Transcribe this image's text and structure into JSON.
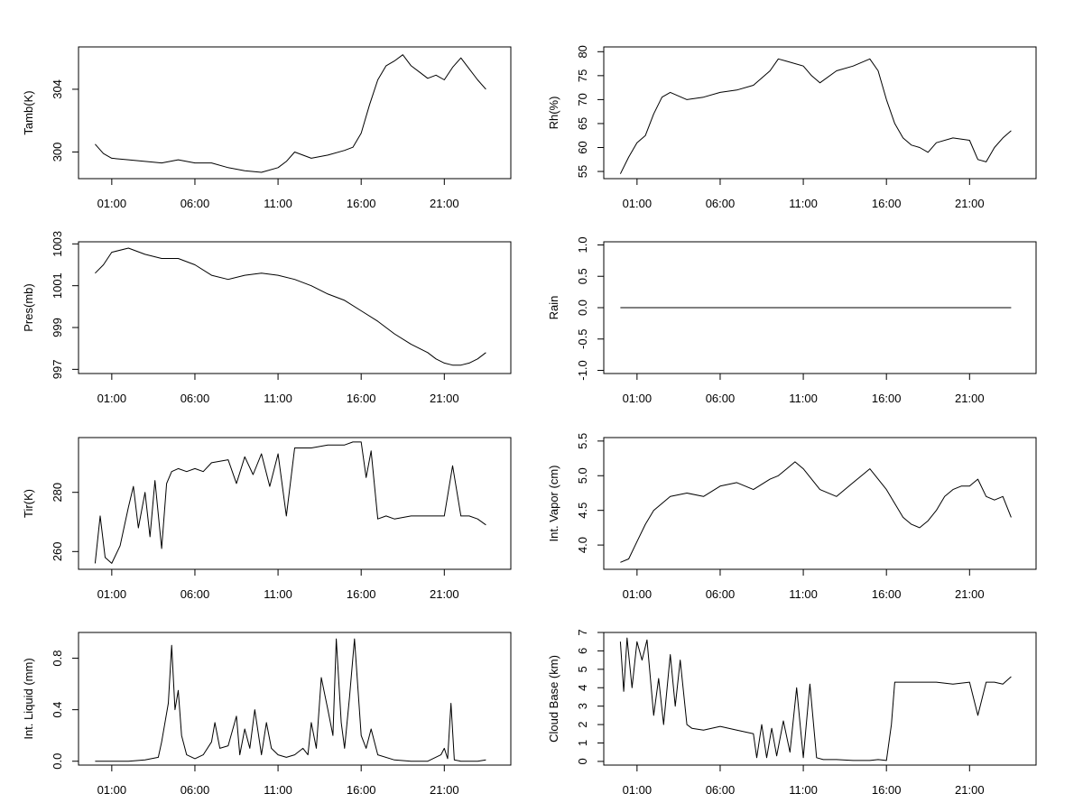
{
  "chart_data": [
    {
      "type": "line",
      "ylabel": "Tamb(K)",
      "x_tick_labels": [
        "01:00",
        "06:00",
        "11:00",
        "16:00",
        "21:00"
      ],
      "x_tick_hours": [
        1,
        6,
        11,
        16,
        21
      ],
      "xlim": [
        -1.0,
        25.0
      ],
      "ylim": [
        298.3,
        306.7
      ],
      "y_ticks": [
        300,
        304
      ],
      "y_tick_labels": [
        "300",
        "304"
      ],
      "x": [
        0,
        0.5,
        1,
        2,
        3,
        4,
        5,
        6,
        7,
        8,
        9,
        10,
        11,
        11.5,
        12,
        13,
        14,
        15,
        15.5,
        16,
        16.5,
        17,
        17.5,
        18,
        18.5,
        19,
        19.5,
        20,
        20.5,
        21,
        21.5,
        22,
        22.5,
        23,
        23.5
      ],
      "y": [
        300.5,
        299.9,
        299.6,
        299.5,
        299.4,
        299.3,
        299.5,
        299.3,
        299.3,
        299.0,
        298.8,
        298.7,
        299.0,
        299.4,
        300.0,
        299.6,
        299.8,
        300.1,
        300.3,
        301.2,
        303.0,
        304.6,
        305.5,
        305.8,
        306.2,
        305.5,
        305.1,
        304.7,
        304.9,
        304.6,
        305.4,
        306.0,
        305.3,
        304.6,
        304.0
      ]
    },
    {
      "type": "line",
      "ylabel": "Rh(%)",
      "x_tick_labels": [
        "01:00",
        "06:00",
        "11:00",
        "16:00",
        "21:00"
      ],
      "x_tick_hours": [
        1,
        6,
        11,
        16,
        21
      ],
      "xlim": [
        -1.0,
        25.0
      ],
      "ylim": [
        53.5,
        81.0
      ],
      "y_ticks": [
        55,
        60,
        65,
        70,
        75,
        80
      ],
      "y_tick_labels": [
        "55",
        "60",
        "65",
        "70",
        "75",
        "80"
      ],
      "x": [
        0,
        0.5,
        1,
        1.5,
        2,
        2.5,
        3,
        4,
        5,
        6,
        7,
        8,
        9,
        9.5,
        10,
        11,
        11.5,
        12,
        13,
        14,
        15,
        15.5,
        16,
        16.5,
        17,
        17.5,
        18,
        18.5,
        19,
        20,
        21,
        21.5,
        22,
        22.5,
        23,
        23.5
      ],
      "y": [
        54.5,
        58.0,
        61.0,
        62.5,
        67.0,
        70.5,
        71.5,
        70.0,
        70.5,
        71.5,
        72.0,
        73.0,
        76.0,
        78.5,
        78.0,
        77.0,
        75.0,
        73.5,
        76.0,
        77.0,
        78.5,
        76.0,
        70.0,
        65.0,
        62.0,
        60.5,
        60.0,
        59.0,
        61.0,
        62.0,
        61.5,
        57.5,
        57.0,
        60.0,
        62.0,
        63.5
      ]
    },
    {
      "type": "line",
      "ylabel": "Pres(mb)",
      "x_tick_labels": [
        "01:00",
        "06:00",
        "11:00",
        "16:00",
        "21:00"
      ],
      "x_tick_hours": [
        1,
        6,
        11,
        16,
        21
      ],
      "xlim": [
        -1.0,
        25.0
      ],
      "ylim": [
        996.8,
        1003.1
      ],
      "y_ticks": [
        997,
        999,
        1001,
        1003
      ],
      "y_tick_labels": [
        "997",
        "999",
        "1001",
        "1003"
      ],
      "x": [
        0,
        0.5,
        1,
        2,
        3,
        4,
        5,
        6,
        7,
        8,
        9,
        10,
        11,
        12,
        13,
        14,
        15,
        16,
        17,
        18,
        19,
        20,
        20.5,
        21,
        21.5,
        22,
        22.5,
        23,
        23.5
      ],
      "y": [
        1001.6,
        1002.0,
        1002.6,
        1002.8,
        1002.5,
        1002.3,
        1002.3,
        1002.0,
        1001.5,
        1001.3,
        1001.5,
        1001.6,
        1001.5,
        1001.3,
        1001.0,
        1000.6,
        1000.3,
        999.8,
        999.3,
        998.7,
        998.2,
        997.8,
        997.5,
        997.3,
        997.2,
        997.2,
        997.3,
        997.5,
        997.8
      ]
    },
    {
      "type": "line",
      "ylabel": "Rain",
      "x_tick_labels": [
        "01:00",
        "06:00",
        "11:00",
        "16:00",
        "21:00"
      ],
      "x_tick_hours": [
        1,
        6,
        11,
        16,
        21
      ],
      "xlim": [
        -1.0,
        25.0
      ],
      "ylim": [
        -1.05,
        1.05
      ],
      "y_ticks": [
        -1.0,
        -0.5,
        0.0,
        0.5,
        1.0
      ],
      "y_tick_labels": [
        "-1.0",
        "-0.5",
        "0.0",
        "0.5",
        "1.0"
      ],
      "x": [
        0,
        23.5
      ],
      "y": [
        0.0,
        0.0
      ]
    },
    {
      "type": "line",
      "ylabel": "Tir(K)",
      "x_tick_labels": [
        "01:00",
        "06:00",
        "11:00",
        "16:00",
        "21:00"
      ],
      "x_tick_hours": [
        1,
        6,
        11,
        16,
        21
      ],
      "xlim": [
        -1.0,
        25.0
      ],
      "ylim": [
        254.0,
        298.5
      ],
      "y_ticks": [
        260,
        280
      ],
      "y_tick_labels": [
        "260",
        "280"
      ],
      "x": [
        0,
        0.3,
        0.6,
        1,
        1.5,
        2,
        2.3,
        2.6,
        3,
        3.3,
        3.6,
        4,
        4.3,
        4.6,
        5,
        5.5,
        6,
        6.5,
        7,
        8,
        8.5,
        9,
        9.5,
        10,
        10.5,
        11,
        11.5,
        12,
        13,
        14,
        15,
        15.5,
        16,
        16.3,
        16.6,
        17,
        17.5,
        18,
        19,
        20,
        21,
        21.5,
        22,
        22.5,
        23,
        23.5
      ],
      "y": [
        256,
        272,
        258,
        256,
        262,
        275,
        282,
        268,
        280,
        265,
        284,
        261,
        283,
        287,
        288,
        287,
        288,
        287,
        290,
        291,
        283,
        292,
        286,
        293,
        282,
        293,
        272,
        295,
        295,
        296,
        296,
        297,
        297,
        285,
        294,
        271,
        272,
        271,
        272,
        272,
        272,
        289,
        272,
        272,
        271,
        269
      ]
    },
    {
      "type": "line",
      "ylabel": "Int. Vapor (cm)",
      "x_tick_labels": [
        "01:00",
        "06:00",
        "11:00",
        "16:00",
        "21:00"
      ],
      "x_tick_hours": [
        1,
        6,
        11,
        16,
        21
      ],
      "xlim": [
        -1.0,
        25.0
      ],
      "ylim": [
        3.65,
        5.55
      ],
      "y_ticks": [
        4.0,
        4.5,
        5.0,
        5.5
      ],
      "y_tick_labels": [
        "4.0",
        "4.5",
        "5.0",
        "5.5"
      ],
      "x": [
        0,
        0.5,
        1,
        1.5,
        2,
        2.5,
        3,
        4,
        5,
        6,
        7,
        8,
        9,
        9.5,
        10,
        10.5,
        11,
        12,
        13,
        14,
        14.5,
        15,
        16,
        16.5,
        17,
        17.5,
        18,
        18.5,
        19,
        19.5,
        20,
        20.5,
        21,
        21.5,
        22,
        22.5,
        23,
        23.5
      ],
      "y": [
        3.75,
        3.8,
        4.05,
        4.3,
        4.5,
        4.6,
        4.7,
        4.75,
        4.7,
        4.85,
        4.9,
        4.8,
        4.95,
        5.0,
        5.1,
        5.2,
        5.1,
        4.8,
        4.7,
        4.9,
        5.0,
        5.1,
        4.8,
        4.6,
        4.4,
        4.3,
        4.25,
        4.35,
        4.5,
        4.7,
        4.8,
        4.85,
        4.85,
        4.95,
        4.7,
        4.65,
        4.7,
        4.4
      ]
    },
    {
      "type": "line",
      "ylabel": "Int. Liquid (mm)",
      "x_tick_labels": [
        "01:00",
        "06:00",
        "11:00",
        "16:00",
        "21:00"
      ],
      "x_tick_hours": [
        1,
        6,
        11,
        16,
        21
      ],
      "xlim": [
        -1.0,
        25.0
      ],
      "ylim": [
        -0.03,
        1.0
      ],
      "y_ticks": [
        0.0,
        0.4,
        0.8
      ],
      "y_tick_labels": [
        "0.0",
        "0.4",
        "0.8"
      ],
      "x": [
        0,
        1,
        2,
        3,
        3.8,
        4,
        4.2,
        4.4,
        4.6,
        4.8,
        5.0,
        5.2,
        5.5,
        6.0,
        6.5,
        7.0,
        7.2,
        7.5,
        8.0,
        8.5,
        8.7,
        9.0,
        9.3,
        9.6,
        10.0,
        10.3,
        10.6,
        11.0,
        11.5,
        12.0,
        12.5,
        12.8,
        13.0,
        13.3,
        13.6,
        14.0,
        14.3,
        14.5,
        14.8,
        15.0,
        15.3,
        15.6,
        16.0,
        16.3,
        16.6,
        17.0,
        18,
        19,
        20,
        20.8,
        21.0,
        21.2,
        21.4,
        21.6,
        22,
        23,
        23.5
      ],
      "y": [
        0,
        0,
        0,
        0.01,
        0.03,
        0.15,
        0.3,
        0.45,
        0.9,
        0.4,
        0.55,
        0.2,
        0.05,
        0.02,
        0.05,
        0.15,
        0.3,
        0.1,
        0.12,
        0.35,
        0.05,
        0.25,
        0.1,
        0.4,
        0.05,
        0.3,
        0.1,
        0.05,
        0.03,
        0.05,
        0.1,
        0.05,
        0.3,
        0.1,
        0.65,
        0.4,
        0.2,
        0.95,
        0.3,
        0.1,
        0.5,
        0.95,
        0.2,
        0.1,
        0.25,
        0.05,
        0.01,
        0,
        0,
        0.05,
        0.1,
        0.02,
        0.45,
        0.01,
        0,
        0,
        0.01
      ]
    },
    {
      "type": "line",
      "ylabel": "Cloud Base (km)",
      "x_tick_labels": [
        "01:00",
        "06:00",
        "11:00",
        "16:00",
        "21:00"
      ],
      "x_tick_hours": [
        1,
        6,
        11,
        16,
        21
      ],
      "xlim": [
        -1.0,
        25.0
      ],
      "ylim": [
        -0.2,
        7.0
      ],
      "y_ticks": [
        0,
        1,
        2,
        3,
        4,
        5,
        6,
        7
      ],
      "y_tick_labels": [
        "0",
        "1",
        "2",
        "3",
        "4",
        "5",
        "6",
        "7"
      ],
      "x": [
        0,
        0.2,
        0.4,
        0.7,
        1.0,
        1.3,
        1.6,
        2.0,
        2.3,
        2.6,
        3.0,
        3.3,
        3.6,
        4.0,
        4.3,
        5,
        6,
        7,
        8,
        8.2,
        8.5,
        8.8,
        9.1,
        9.4,
        9.8,
        10.2,
        10.6,
        11.0,
        11.4,
        11.8,
        12.2,
        13,
        14,
        15,
        15.5,
        16.0,
        16.3,
        16.5,
        17,
        18,
        19,
        20,
        21,
        21.5,
        22,
        22.5,
        23,
        23.5
      ],
      "y": [
        6.5,
        3.8,
        6.7,
        4.0,
        6.5,
        5.5,
        6.6,
        2.5,
        4.5,
        2.0,
        5.8,
        3.0,
        5.5,
        2.0,
        1.8,
        1.7,
        1.9,
        1.7,
        1.5,
        0.2,
        2.0,
        0.2,
        1.8,
        0.3,
        2.2,
        0.5,
        4.0,
        0.2,
        4.2,
        0.2,
        0.1,
        0.1,
        0.05,
        0.05,
        0.1,
        0.05,
        2.0,
        4.3,
        4.3,
        4.3,
        4.3,
        4.2,
        4.3,
        2.5,
        4.3,
        4.3,
        4.2,
        4.6
      ]
    }
  ]
}
